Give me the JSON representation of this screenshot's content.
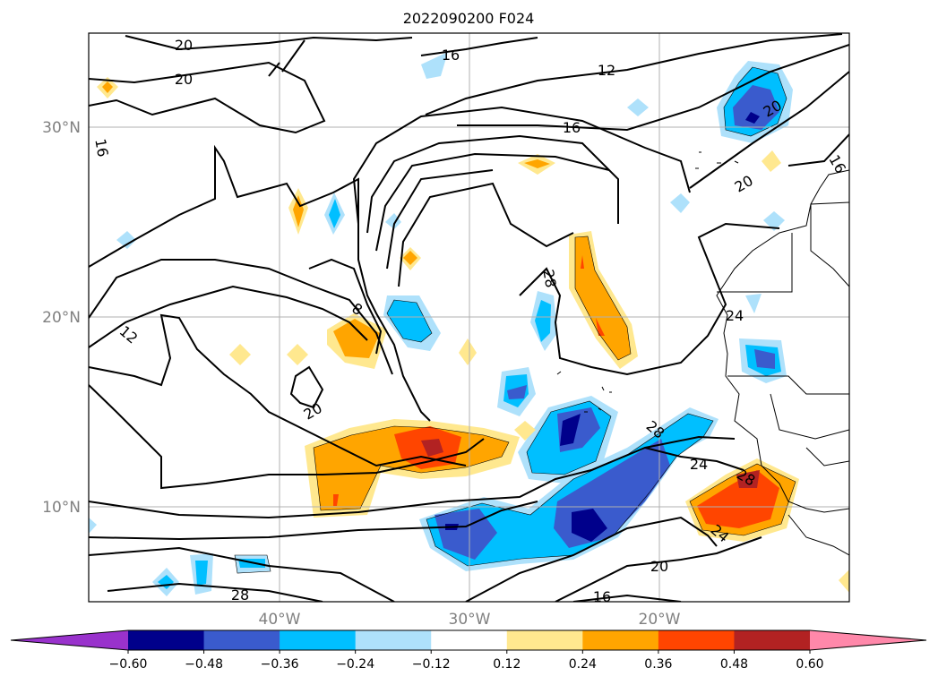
{
  "title": "2022090200 F024",
  "axes": {
    "lon_ticks": [
      {
        "label": "40°W"
      },
      {
        "label": "30°W"
      },
      {
        "label": "20°W"
      }
    ],
    "lat_ticks": [
      {
        "label": "30°N"
      },
      {
        "label": "20°N"
      },
      {
        "label": "10°N"
      }
    ]
  },
  "colorbar": {
    "colors": [
      "#9932cc",
      "#00008b",
      "#3a5bcd",
      "#00bfff",
      "#aee1fb",
      "#ffffff",
      "#ffe88f",
      "#ffa500",
      "#ff4500",
      "#b22222",
      "#ff88aa"
    ],
    "tick_labels": [
      "−0.60",
      "−0.48",
      "−0.36",
      "−0.24",
      "−0.12",
      "0.12",
      "0.24",
      "0.36",
      "0.48",
      "0.60"
    ]
  },
  "contour_labels": [
    "20",
    "20",
    "16",
    "12",
    "16",
    "16",
    "16",
    "20",
    "20",
    "8",
    "12",
    "20",
    "28",
    "28",
    "24",
    "24",
    "20",
    "16",
    "28",
    "28",
    "24"
  ]
}
